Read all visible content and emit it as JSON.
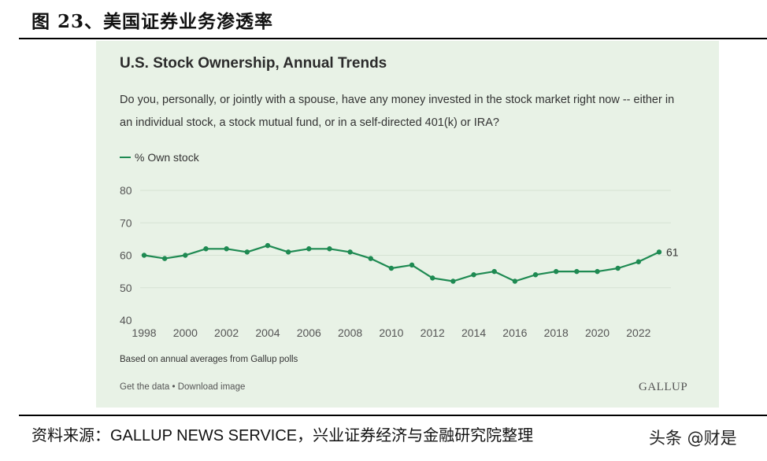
{
  "figure": {
    "title": "图 23、美国证券业务渗透率",
    "source_prefix": "资料来源：",
    "source_en": "GALLUP NEWS SERVICE",
    "source_suffix": "，兴业证券经济与金融研究院整理",
    "watermark": "头条 @财是"
  },
  "colors": {
    "panel_bg": "#e8f2e6",
    "line": "#1e8a52",
    "grid": "#d6e2d3"
  },
  "chart_data": {
    "type": "line",
    "title": "U.S. Stock Ownership, Annual Trends",
    "subtitle": "Do you, personally, or jointly with a spouse, have any money invested in the stock market right now -- either in an individual stock, a stock mutual fund, or in a self-directed 401(k) or IRA?",
    "legend": "% Own stock",
    "xlabel": "",
    "ylabel": "",
    "ylim": [
      40,
      80
    ],
    "yticks": [
      40,
      50,
      60,
      70,
      80
    ],
    "xticks": [
      1998,
      2000,
      2002,
      2004,
      2006,
      2008,
      2010,
      2012,
      2014,
      2016,
      2018,
      2020,
      2022
    ],
    "series": [
      {
        "name": "% Own stock",
        "x": [
          1998,
          1999,
          2000,
          2001,
          2002,
          2003,
          2004,
          2005,
          2006,
          2007,
          2008,
          2009,
          2010,
          2011,
          2012,
          2013,
          2014,
          2015,
          2016,
          2017,
          2018,
          2019,
          2020,
          2021,
          2022,
          2023
        ],
        "values": [
          60,
          59,
          60,
          62,
          62,
          61,
          63,
          61,
          62,
          62,
          61,
          59,
          56,
          57,
          53,
          52,
          54,
          55,
          52,
          54,
          55,
          55,
          55,
          56,
          58,
          61
        ]
      }
    ],
    "end_label": "61",
    "note": "Based on annual averages from Gallup polls",
    "links": "Get the data • Download image",
    "brand": "GALLUP"
  }
}
